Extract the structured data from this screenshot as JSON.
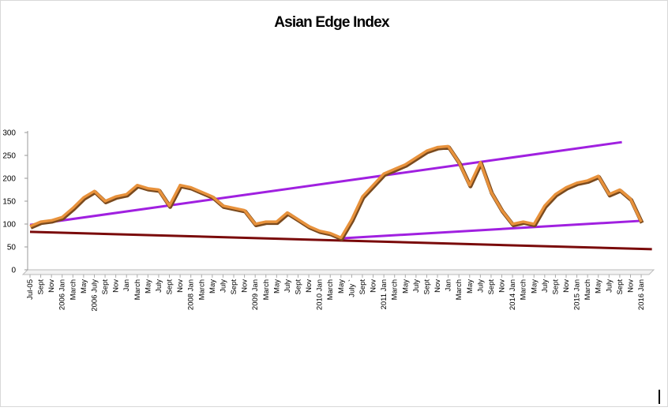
{
  "chart_data": {
    "type": "line",
    "title": "Asian Edge Index",
    "categories": [
      "Jul-05",
      "Sept",
      "Nov",
      "2006 Jan",
      "March",
      "May",
      "2006 July",
      "Sept",
      "Nov",
      "Jan",
      "March",
      "May",
      "July",
      "Sept",
      "Nov",
      "2008 Jan",
      "March",
      "May",
      "July",
      "Sept",
      "Nov",
      "2009 Jan",
      "March",
      "May",
      "July",
      "Sept",
      "Nov",
      "2010 Jan",
      "March",
      "May",
      "July `",
      "Sept",
      "Nov",
      "2011 Jan",
      "March",
      "May",
      "July",
      "Sept",
      "Nov",
      "Jan",
      "March",
      "May",
      "July",
      "Sept",
      "Nov",
      "2014 Jan",
      "March",
      "May",
      "July",
      "Sept",
      "Nov",
      "2015 Jan",
      "March",
      "May",
      "July",
      "Sept",
      "Nov",
      "2016 Jan"
    ],
    "values": [
      95,
      105,
      108,
      115,
      135,
      158,
      172,
      150,
      160,
      165,
      185,
      178,
      175,
      140,
      185,
      180,
      170,
      160,
      140,
      135,
      130,
      100,
      105,
      105,
      125,
      110,
      95,
      85,
      80,
      70,
      110,
      160,
      185,
      210,
      220,
      230,
      245,
      260,
      268,
      270,
      235,
      185,
      235,
      170,
      130,
      100,
      105,
      100,
      140,
      165,
      180,
      190,
      195,
      205,
      165,
      175,
      155,
      105
    ],
    "color": "#e8923c",
    "trendlines": [
      {
        "color": "#a020e0",
        "points": [
          [
            0,
            98
          ],
          [
            55.2,
            279
          ]
        ]
      },
      {
        "color": "#a020e0",
        "points": [
          [
            29.2,
            69
          ],
          [
            57,
            107
          ]
        ]
      },
      {
        "color": "#7a0a0a",
        "points": [
          [
            0,
            83
          ],
          [
            58,
            45
          ]
        ]
      }
    ],
    "ylim": [
      0,
      300
    ],
    "yticks": [
      0,
      50,
      100,
      150,
      200,
      250,
      300
    ]
  }
}
